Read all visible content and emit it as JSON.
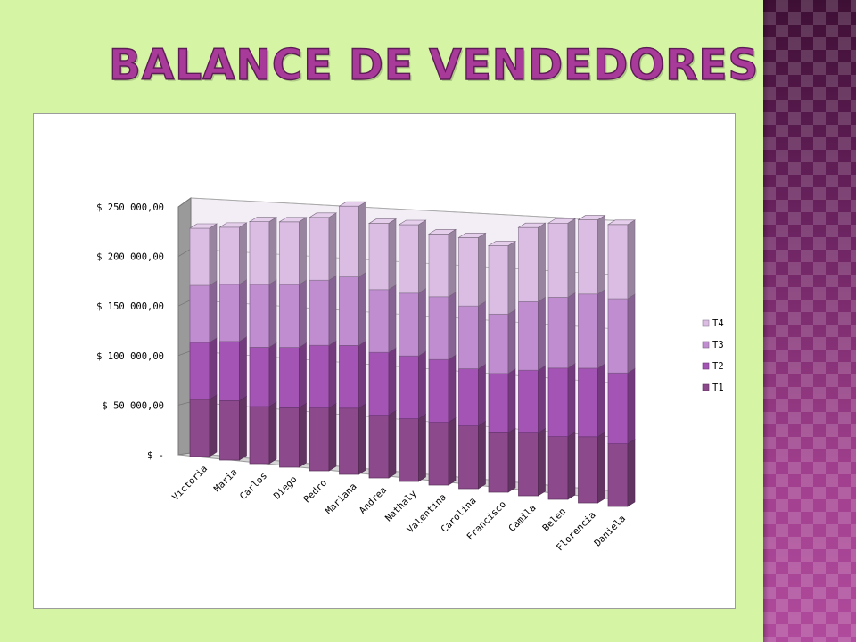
{
  "slide": {
    "title": "BALANCE DE VENDEDORES"
  },
  "colors": {
    "background": "#d5f5a5",
    "accent_band": "#7a2d6e",
    "title": "#a83a9a",
    "T1": "#8c4a8c",
    "T2": "#a454b4",
    "T3": "#c08ed0",
    "T4": "#dbbde4"
  },
  "chart_data": {
    "type": "bar",
    "stacked": true,
    "style": "3d-cylinder",
    "title": "",
    "xlabel": "",
    "ylabel": "",
    "ylim": [
      0,
      250000
    ],
    "y_ticks": [
      0,
      50000,
      100000,
      150000,
      200000,
      250000
    ],
    "y_tick_labels": [
      "$ -",
      "$ 50 000,00",
      "$ 100 000,00",
      "$ 150 000,00",
      "$ 200 000,00",
      "$ 250 000,00"
    ],
    "grid": true,
    "legend_position": "right",
    "categories": [
      "Victoria",
      "Maria",
      "Carlos",
      "Diego",
      "Pedro",
      "Mariana",
      "Andrea",
      "Nathaly",
      "Valentina",
      "Carolina",
      "Francisco",
      "Camila",
      "Belen",
      "Florencia",
      "Daniela"
    ],
    "series": [
      {
        "name": "T1",
        "values": [
          50000,
          52000,
          50000,
          52000,
          55000,
          58000,
          55000,
          55000,
          55000,
          55000,
          52000,
          55000,
          55000,
          58000,
          55000
        ]
      },
      {
        "name": "T2",
        "values": [
          50000,
          52000,
          52000,
          53000,
          55000,
          55000,
          55000,
          55000,
          55000,
          50000,
          52000,
          55000,
          60000,
          60000,
          62000
        ]
      },
      {
        "name": "T3",
        "values": [
          50000,
          50000,
          55000,
          55000,
          57000,
          60000,
          55000,
          55000,
          55000,
          55000,
          52000,
          60000,
          62000,
          65000,
          65000
        ]
      },
      {
        "name": "T4",
        "values": [
          50000,
          50000,
          55000,
          55000,
          55000,
          62000,
          58000,
          60000,
          55000,
          60000,
          60000,
          65000,
          65000,
          65000,
          65000
        ]
      }
    ]
  }
}
